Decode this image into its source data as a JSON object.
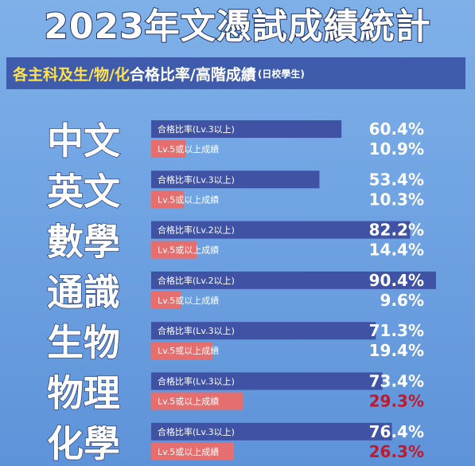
{
  "header": {
    "title": "2023年文憑試成績統計",
    "subtitle_part1": "各主科及生/物/化",
    "subtitle_part2": "合格比率/高階成績",
    "subtitle_part3": "(日校學生)"
  },
  "colors": {
    "pass_bar": "#3f52a4",
    "high_bar": "#e56e6e",
    "pct_pass": "#ffffff",
    "pct_high_light": "#ffffff",
    "pct_high_dark": "#c4182a"
  },
  "chart_data": {
    "type": "bar",
    "orientation": "horizontal",
    "categories": [
      "中文",
      "英文",
      "數學",
      "通識",
      "生物",
      "物理",
      "化學"
    ],
    "series": [
      {
        "name": "合格比率",
        "labels": [
          "合格比率(Lv.3以上)",
          "合格比率(Lv.3以上)",
          "合格比率(Lv.2以上)",
          "合格比率(Lv.2以上)",
          "合格比率(Lv.3以上)",
          "合格比率(Lv.3以上)",
          "合格比率(Lv.3以上)"
        ],
        "values": [
          60.4,
          53.4,
          82.2,
          90.4,
          71.3,
          73.4,
          76.4
        ],
        "value_labels": [
          "60.4%",
          "53.4%",
          "82.2%",
          "90.4%",
          "71.3%",
          "73.4%",
          "76.4%"
        ]
      },
      {
        "name": "Lv.5或以上成績",
        "labels": [
          "Lv.5或以上成績",
          "Lv.5或以上成績",
          "Lv.5或以上成績",
          "Lv.5或以上成績",
          "Lv.5或以上成績",
          "Lv.5或以上成績",
          "Lv.5或以上成績"
        ],
        "values": [
          10.9,
          10.3,
          14.4,
          9.6,
          19.4,
          29.3,
          26.3
        ],
        "value_labels": [
          "10.9%",
          "10.3%",
          "14.4%",
          "9.6%",
          "19.4%",
          "29.3%",
          "26.3%"
        ]
      }
    ],
    "xlim": [
      0,
      100
    ],
    "grid": false,
    "legend": "none"
  }
}
